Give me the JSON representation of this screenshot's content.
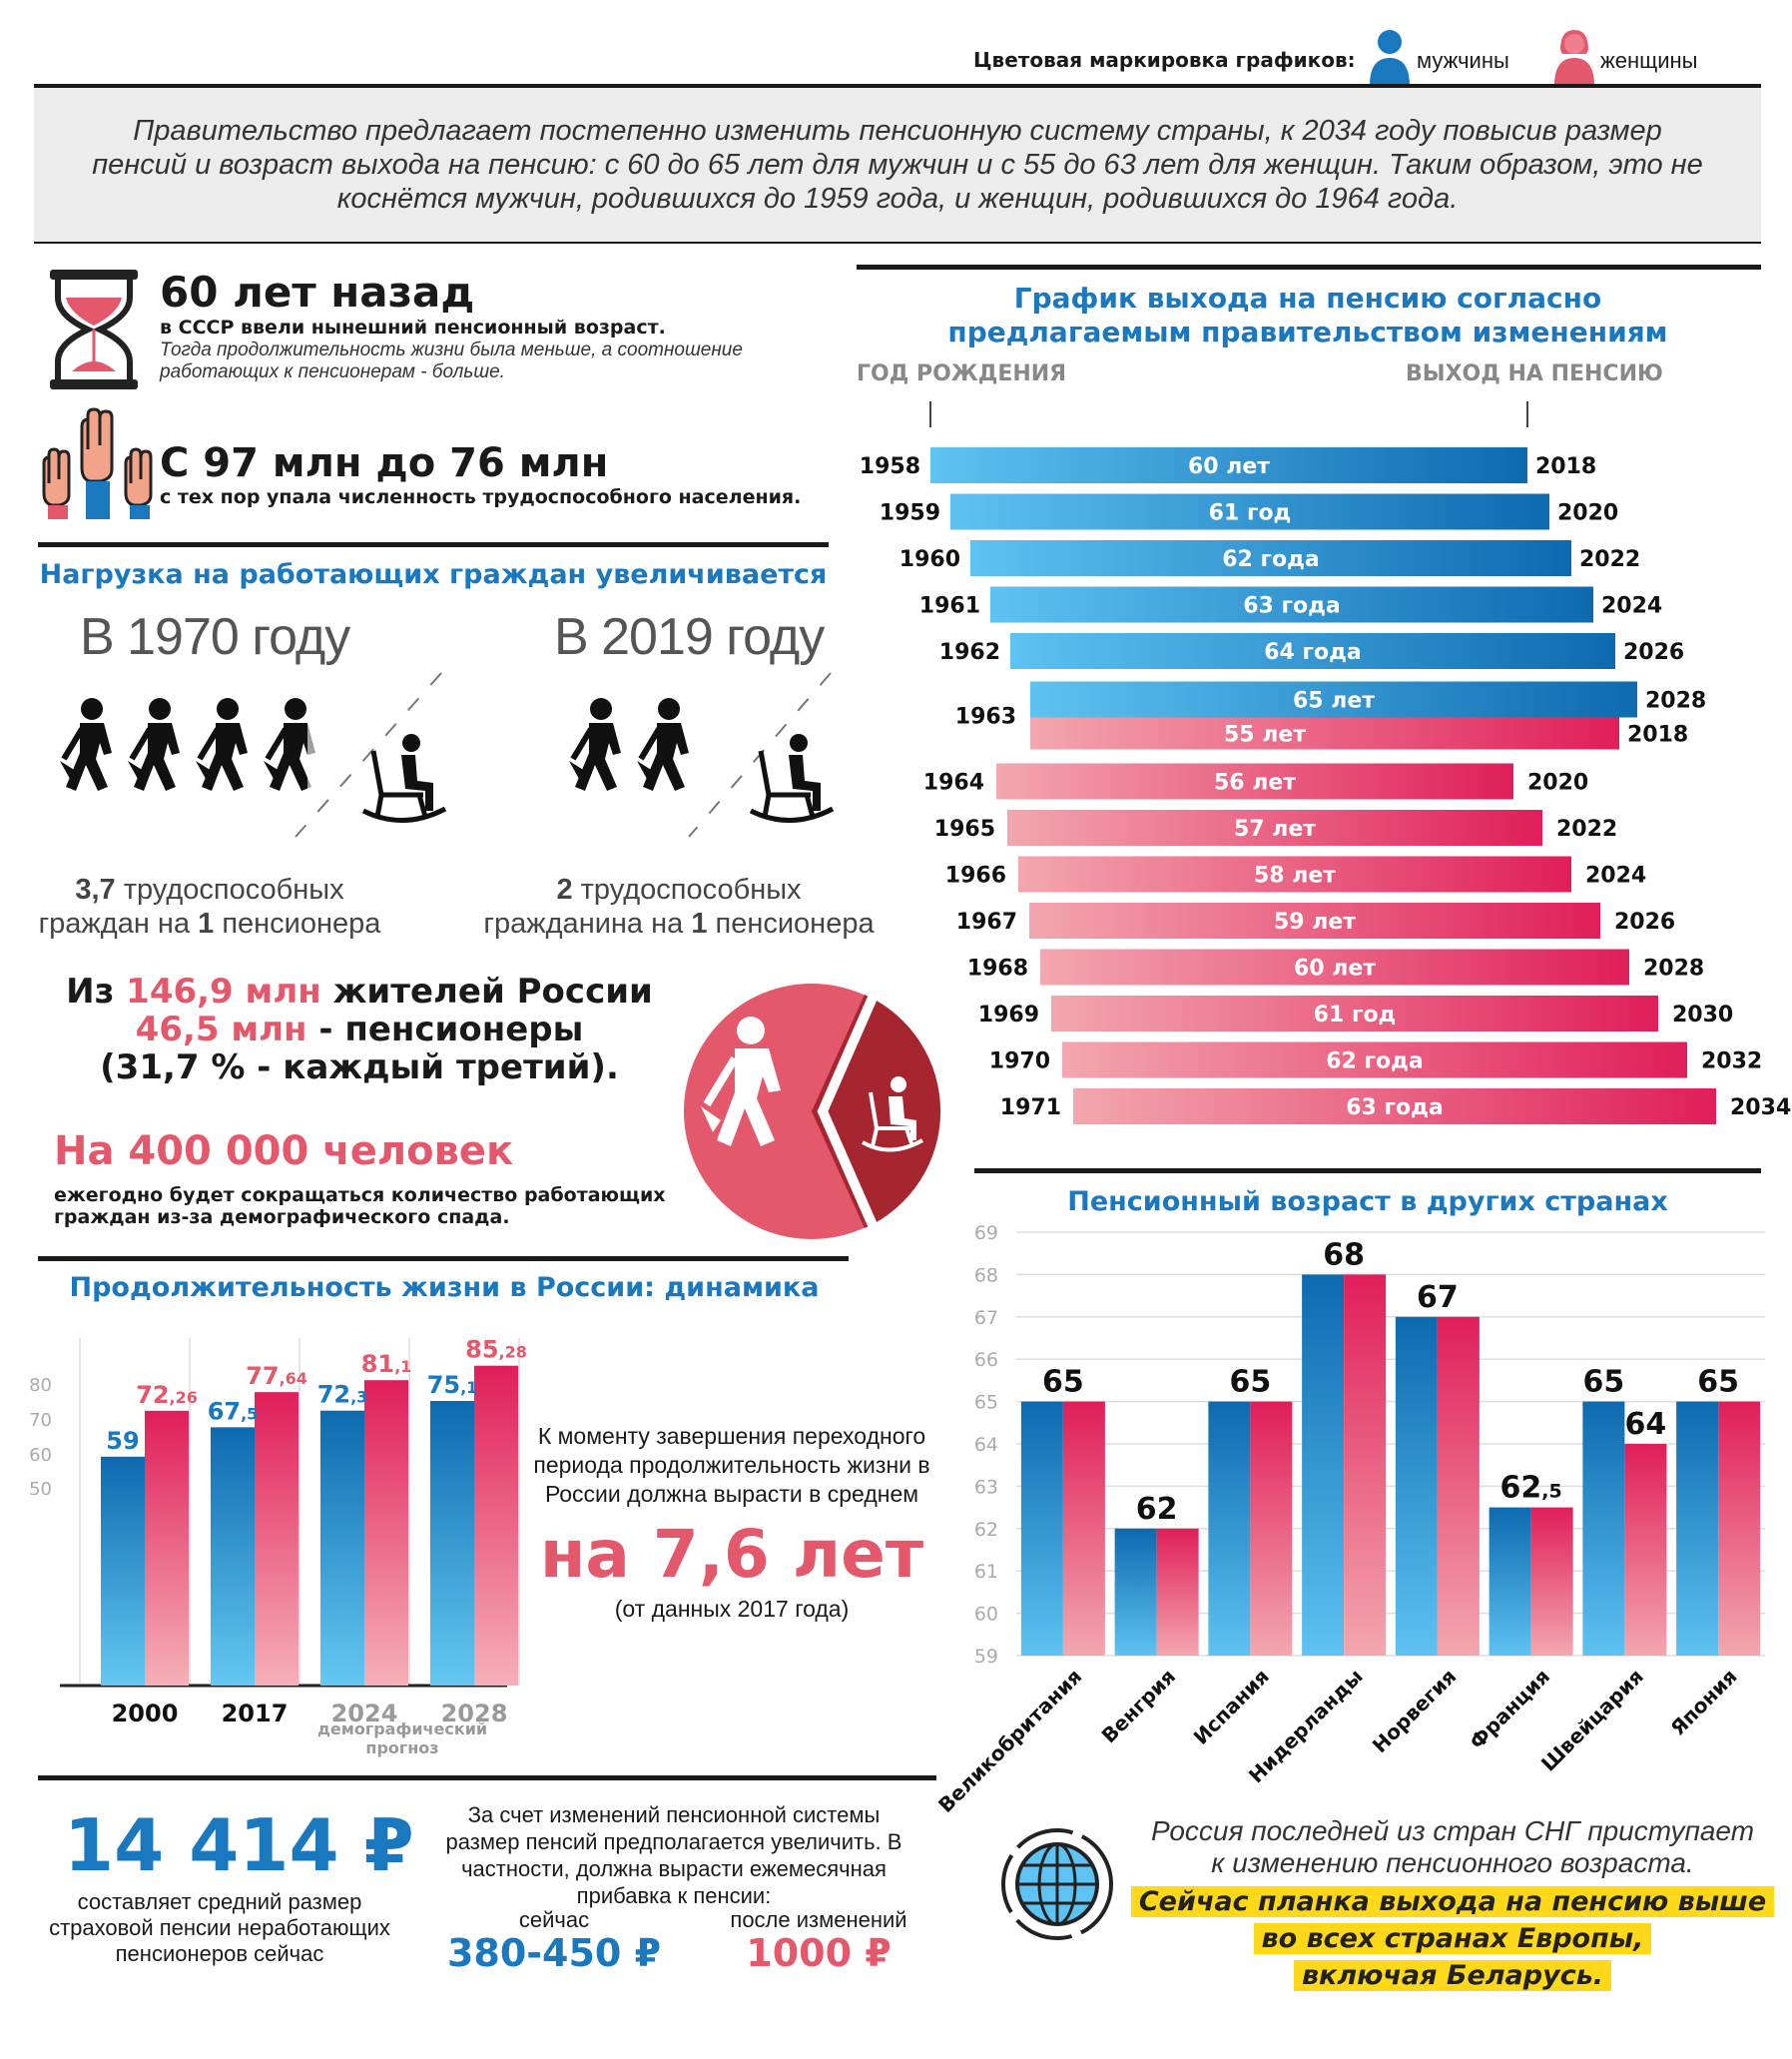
{
  "legend": {
    "label": "Цветовая маркировка графиков:",
    "male": "мужчины",
    "female": "женщины",
    "male_color": "#1a78bf",
    "female_color": "#e4586b"
  },
  "intro": "Правительство предлагает постепенно изменить пенсионную систему страны, к 2034 году повысив размер пенсий и возраст выхода на пенсию: с 60 до 65 лет для мужчин и с 55 до 63 лет для женщин. Таким образом, это не коснётся мужчин, родившихся до 1959 года, и женщин, родившихся до 1964 года.",
  "fact1": {
    "title": "60 лет назад",
    "subtitle": "в СССР ввели нынешний пенсионный возраст.",
    "note": "Тогда продолжительность жизни была меньше, а соотношение работающих к пенсионерам - больше."
  },
  "fact2": {
    "title": "С 97 млн до 76 млн",
    "subtitle": "с тех пор упала численность трудоспособного населения."
  },
  "load": {
    "title": "Нагрузка на работающих граждан увеличивается",
    "left_year": "В 1970 году",
    "left_num": "3,7",
    "left_line1": " трудоспособных",
    "left_line2a": "граждан на ",
    "left_one": "1",
    "left_line2b": " пенсионера",
    "right_year": "В 2019 году",
    "right_num": "2",
    "right_line1": " трудоспособных",
    "right_line2a": "гражданина на ",
    "right_one": "1",
    "right_line2b": " пенсионера"
  },
  "pop": {
    "l1a": "Из ",
    "l1b": "146,9 млн",
    "l1c": " жителей России",
    "l2a": "46,5 млн",
    "l2b": " - пенсионеры",
    "l3": "(31,7 % - каждый третий).",
    "big": "На 400 000 человек",
    "note": "ежегодно будет сокращаться количество работающих граждан из-за демографического спада."
  },
  "life": {
    "title": "Продолжительность жизни в России: динамика",
    "forecast_note": "демографический прогноз",
    "side_text": "К моменту завершения переходного периода продолжительность жизни в России должна вырасти в среднем",
    "side_big": "на 7,6 лет",
    "side_small": "(от данных 2017 года)"
  },
  "pension": {
    "amount": "14 414 ₽",
    "amount_note": "составляет средний размер страховой пенсии неработающих пенсионеров сейчас",
    "text": "За счет изменений пенсионной системы размер пенсий предполагается увеличить. В частности, должна вырасти ежемесячная прибавка к пенсии:",
    "now_label": "сейчас",
    "now_value": "380-450 ₽",
    "after_label": "после изменений",
    "after_value": "1000 ₽"
  },
  "cis": {
    "line1": "Россия последней из стран СНГ приступает",
    "line2": "к изменению пенсионного возраста.",
    "hl1": "Сейчас планка выхода на пенсию выше",
    "hl2": "во всех странах Европы,",
    "hl3": "включая Беларусь."
  },
  "chart_data": [
    {
      "type": "bar",
      "orientation": "horizontal",
      "title": "График выхода на пенсию согласно предлагаемым правительством изменениям",
      "left_header": "ГОД РОЖДЕНИЯ",
      "right_header": "ВЫХОД НА ПЕНСИЮ",
      "series": [
        {
          "name": "мужчины",
          "rows": [
            {
              "birth": "1958",
              "age": 60,
              "label": "60 лет",
              "retire": "2018"
            },
            {
              "birth": "1959",
              "age": 61,
              "label": "61 год",
              "retire": "2020"
            },
            {
              "birth": "1960",
              "age": 62,
              "label": "62 года",
              "retire": "2022"
            },
            {
              "birth": "1961",
              "age": 63,
              "label": "63 года",
              "retire": "2024"
            },
            {
              "birth": "1962",
              "age": 64,
              "label": "64 года",
              "retire": "2026"
            },
            {
              "birth": "1963",
              "age": 65,
              "label": "65 лет",
              "retire": "2028"
            }
          ]
        },
        {
          "name": "женщины",
          "rows": [
            {
              "birth": "1963",
              "age": 55,
              "label": "55 лет",
              "retire": "2018"
            },
            {
              "birth": "1964",
              "age": 56,
              "label": "56 лет",
              "retire": "2020"
            },
            {
              "birth": "1965",
              "age": 57,
              "label": "57 лет",
              "retire": "2022"
            },
            {
              "birth": "1966",
              "age": 58,
              "label": "58 лет",
              "retire": "2024"
            },
            {
              "birth": "1967",
              "age": 59,
              "label": "59 лет",
              "retire": "2026"
            },
            {
              "birth": "1968",
              "age": 60,
              "label": "60 лет",
              "retire": "2028"
            },
            {
              "birth": "1969",
              "age": 61,
              "label": "61 год",
              "retire": "2030"
            },
            {
              "birth": "1970",
              "age": 62,
              "label": "62 года",
              "retire": "2032"
            },
            {
              "birth": "1971",
              "age": 63,
              "label": "63 года",
              "retire": "2034"
            }
          ]
        }
      ]
    },
    {
      "type": "bar",
      "title": "Продолжительность жизни в России: динамика",
      "categories": [
        "2000",
        "2017",
        "2024",
        "2028"
      ],
      "series": [
        {
          "name": "мужчины",
          "values": [
            59,
            67.5,
            72.3,
            75.1
          ],
          "labels": [
            [
              "59",
              ""
            ],
            [
              "67",
              ",5"
            ],
            [
              "72",
              ",3"
            ],
            [
              "75",
              ",1"
            ]
          ]
        },
        {
          "name": "женщины",
          "values": [
            72.26,
            77.64,
            81.1,
            85.28
          ],
          "labels": [
            [
              "72",
              ",26"
            ],
            [
              "77",
              ",64"
            ],
            [
              "81",
              ",1"
            ],
            [
              "85",
              ",28"
            ]
          ]
        }
      ],
      "y_ticks": [
        "50",
        "60",
        "70",
        "80"
      ],
      "ylim": [
        0,
        90
      ]
    },
    {
      "type": "bar",
      "title": "Пенсионный возраст в других странах",
      "categories": [
        "Великобритания",
        "Венгрия",
        "Испания",
        "Нидерланды",
        "Норвегия",
        "Франция",
        "Швейцария",
        "Япония"
      ],
      "series": [
        {
          "name": "мужчины",
          "values": [
            65,
            62,
            65,
            68,
            67,
            62.5,
            65,
            65
          ]
        },
        {
          "name": "женщины",
          "values": [
            65,
            62,
            65,
            68,
            67,
            62.5,
            64,
            65
          ]
        }
      ],
      "value_labels": [
        [
          {
            "t": "65",
            "s": ""
          }
        ],
        [
          {
            "t": "62",
            "s": ""
          }
        ],
        [
          {
            "t": "65",
            "s": ""
          }
        ],
        [
          {
            "t": "68",
            "s": ""
          }
        ],
        [
          {
            "t": "67",
            "s": ""
          }
        ],
        [
          {
            "t": "62",
            "s": ",5"
          }
        ],
        [
          {
            "t": "65",
            "s": ""
          },
          {
            "t": "64",
            "s": ""
          }
        ],
        [
          {
            "t": "65",
            "s": ""
          }
        ]
      ],
      "y_ticks": [
        "59",
        "60",
        "61",
        "62",
        "63",
        "64",
        "65",
        "66",
        "67",
        "68",
        "69"
      ],
      "ylim": [
        59,
        69
      ]
    }
  ]
}
